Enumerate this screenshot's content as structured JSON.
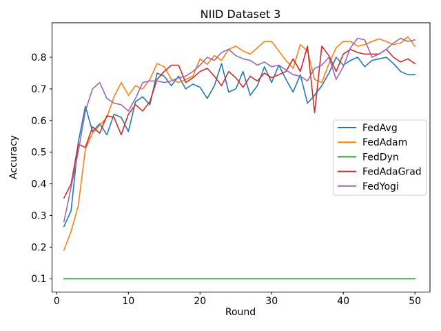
{
  "chart_data": {
    "type": "line",
    "title": "NIID Dataset 3",
    "xlabel": "Round",
    "ylabel": "Accuracy",
    "grid": false,
    "legend_position": "center right",
    "xlim": [
      -0.66,
      52.1
    ],
    "ylim": [
      0.058,
      0.909
    ],
    "x_ticks": [
      0,
      10,
      20,
      30,
      40,
      50
    ],
    "y_ticks": [
      0.1,
      0.2,
      0.3,
      0.4,
      0.5,
      0.6,
      0.7,
      0.8
    ],
    "x_range": [
      1,
      50
    ],
    "series": [
      {
        "name": "FedAvg",
        "color": "#1f77b4",
        "values": [
          0.265,
          0.315,
          0.53,
          0.645,
          0.565,
          0.59,
          0.555,
          0.62,
          0.61,
          0.565,
          0.66,
          0.675,
          0.65,
          0.75,
          0.74,
          0.71,
          0.74,
          0.7,
          0.715,
          0.705,
          0.67,
          0.71,
          0.78,
          0.69,
          0.7,
          0.755,
          0.68,
          0.71,
          0.77,
          0.72,
          0.775,
          0.73,
          0.69,
          0.745,
          0.655,
          0.68,
          0.71,
          0.75,
          0.8,
          0.775,
          0.79,
          0.8,
          0.77,
          0.79,
          0.795,
          0.8,
          0.78,
          0.755,
          0.745,
          0.745
        ]
      },
      {
        "name": "FedAdam",
        "color": "#ff7f0e",
        "values": [
          0.19,
          0.25,
          0.33,
          0.51,
          0.56,
          0.585,
          0.61,
          0.675,
          0.72,
          0.68,
          0.71,
          0.7,
          0.73,
          0.78,
          0.77,
          0.73,
          0.72,
          0.73,
          0.74,
          0.795,
          0.778,
          0.805,
          0.79,
          0.825,
          0.835,
          0.82,
          0.81,
          0.83,
          0.85,
          0.85,
          0.82,
          0.79,
          0.765,
          0.84,
          0.82,
          0.73,
          0.72,
          0.78,
          0.83,
          0.85,
          0.85,
          0.835,
          0.84,
          0.85,
          0.858,
          0.85,
          0.84,
          0.845,
          0.865,
          0.835
        ]
      },
      {
        "name": "FedDyn",
        "color": "#2ca02c",
        "values": [
          0.1,
          0.1,
          0.1,
          0.1,
          0.1,
          0.1,
          0.1,
          0.1,
          0.1,
          0.1,
          0.1,
          0.1,
          0.1,
          0.1,
          0.1,
          0.1,
          0.1,
          0.1,
          0.1,
          0.1,
          0.1,
          0.1,
          0.1,
          0.1,
          0.1,
          0.1,
          0.1,
          0.1,
          0.1,
          0.1,
          0.1,
          0.1,
          0.1,
          0.1,
          0.1,
          0.1,
          0.1,
          0.1,
          0.1,
          0.1,
          0.1,
          0.1,
          0.1,
          0.1,
          0.1,
          0.1,
          0.1,
          0.1,
          0.1,
          0.1
        ]
      },
      {
        "name": "FedAdaGrad",
        "color": "#d62728",
        "values": [
          0.355,
          0.4,
          0.525,
          0.515,
          0.58,
          0.56,
          0.615,
          0.61,
          0.555,
          0.62,
          0.65,
          0.63,
          0.66,
          0.73,
          0.755,
          0.775,
          0.775,
          0.72,
          0.735,
          0.755,
          0.765,
          0.74,
          0.71,
          0.755,
          0.735,
          0.705,
          0.74,
          0.725,
          0.75,
          0.735,
          0.745,
          0.755,
          0.795,
          0.755,
          0.835,
          0.625,
          0.835,
          0.805,
          0.755,
          0.81,
          0.825,
          0.815,
          0.81,
          0.81,
          0.81,
          0.825,
          0.8,
          0.785,
          0.795,
          0.78
        ]
      },
      {
        "name": "FedYogi",
        "color": "#9467bd",
        "values": [
          0.28,
          0.39,
          0.5,
          0.63,
          0.7,
          0.72,
          0.67,
          0.655,
          0.65,
          0.63,
          0.67,
          0.72,
          0.725,
          0.725,
          0.72,
          0.725,
          0.735,
          0.74,
          0.755,
          0.775,
          0.8,
          0.79,
          0.815,
          0.825,
          0.805,
          0.795,
          0.79,
          0.775,
          0.785,
          0.77,
          0.775,
          0.76,
          0.745,
          0.74,
          0.725,
          0.765,
          0.775,
          0.8,
          0.73,
          0.77,
          0.83,
          0.86,
          0.855,
          0.8,
          0.81,
          0.825,
          0.845,
          0.86,
          0.85,
          0.855
        ]
      }
    ]
  }
}
